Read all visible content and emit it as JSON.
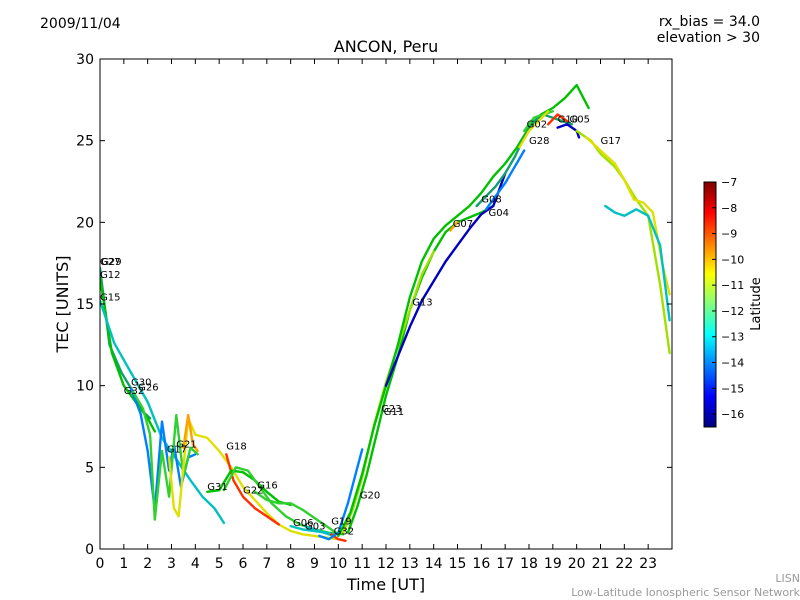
{
  "header": {
    "date": "2009/11/04",
    "bias_line1": "rx_bias = 34.0",
    "bias_line2": "elevation > 30"
  },
  "footer": {
    "line1": "LISN",
    "line2": "Low-Latitude Ionospheric Sensor Network"
  },
  "colors": {
    "jet": [
      "#00007f",
      "#0000ff",
      "#007fff",
      "#00ffff",
      "#7fff7f",
      "#ffff00",
      "#ff7f00",
      "#ff0000",
      "#7f0000"
    ],
    "satellite_scale": [
      "#0000c0",
      "#0080ff",
      "#00c0c0",
      "#10a070",
      "#00c000",
      "#30d030",
      "#a0e000",
      "#e0e000",
      "#ffa000",
      "#ff3000",
      "#d00000"
    ]
  },
  "chart_data": {
    "type": "line",
    "title": "ANCON, Peru",
    "xlabel": "Time [UT]",
    "ylabel": "TEC [UNITS]",
    "xlim": [
      0,
      24
    ],
    "ylim": [
      0,
      30
    ],
    "xticks": [
      0,
      1,
      2,
      3,
      4,
      5,
      6,
      7,
      8,
      9,
      10,
      11,
      12,
      13,
      14,
      15,
      16,
      17,
      18,
      19,
      20,
      21,
      22,
      23
    ],
    "yticks": [
      0,
      5,
      10,
      15,
      20,
      25,
      30
    ],
    "colorbar": {
      "label": "Latitude",
      "range": [
        -16.5,
        -7
      ],
      "ticks": [
        -7,
        -8,
        -9,
        -10,
        -11,
        -12,
        -13,
        -14,
        -15,
        -16
      ]
    },
    "series": [
      {
        "name": "G27",
        "lat": -13.8,
        "x": [
          0.0,
          0.4,
          0.9,
          1.4,
          1.8,
          2.1
        ],
        "y": [
          17.2,
          12.5,
          10.8,
          9.6,
          8.4,
          8.0
        ]
      },
      {
        "name": "G12",
        "lat": -12.5,
        "x": [
          0.0,
          0.5,
          1.0,
          1.6,
          2.0,
          2.3
        ],
        "y": [
          16.6,
          12.0,
          10.0,
          8.8,
          8.0,
          7.2
        ]
      },
      {
        "name": "G15",
        "lat": -14.8,
        "x": [
          0.0,
          0.6,
          1.3,
          2.0,
          2.6,
          3.2,
          3.8,
          4.3,
          4.8,
          5.2
        ],
        "y": [
          15.2,
          12.6,
          10.8,
          9.0,
          6.8,
          5.5,
          4.2,
          3.2,
          2.5,
          1.6
        ]
      },
      {
        "name": "G30",
        "lat": -15.6,
        "x": [
          1.3,
          1.7,
          2.0,
          2.3,
          2.6,
          2.9,
          3.1,
          3.4,
          3.7,
          4.0
        ],
        "y": [
          9.8,
          8.3,
          6.0,
          2.4,
          7.8,
          4.8,
          6.4,
          3.8,
          5.6,
          5.8
        ]
      },
      {
        "name": "G26",
        "lat": -12.0,
        "x": [
          1.4,
          1.8,
          2.1,
          2.3,
          2.6,
          2.9,
          3.2,
          3.5,
          3.8,
          4.1
        ],
        "y": [
          9.6,
          8.6,
          7.0,
          1.8,
          6.0,
          3.2,
          8.2,
          4.5,
          6.2,
          5.8
        ]
      },
      {
        "name": "G17",
        "lat": -10.2,
        "x": [
          2.9,
          3.1,
          3.3,
          3.5,
          3.7,
          4.0,
          4.5,
          5.0,
          5.5,
          6.0,
          6.5,
          7.0,
          7.5,
          8.0,
          8.5,
          9.0,
          9.5,
          10.0
        ],
        "y": [
          5.6,
          2.5,
          2.0,
          5.0,
          8.0,
          7.0,
          6.8,
          6.0,
          5.0,
          3.8,
          3.0,
          2.2,
          1.5,
          1.1,
          0.9,
          0.8,
          0.7,
          0.6
        ]
      },
      {
        "name": "G21",
        "lat": -9.0,
        "x": [
          3.5,
          3.7,
          3.9,
          4.1
        ],
        "y": [
          6.2,
          8.2,
          6.4,
          6.0
        ]
      },
      {
        "name": "G18",
        "lat": -8.2,
        "x": [
          5.3,
          5.6,
          6.0,
          6.5,
          7.0,
          7.5
        ],
        "y": [
          5.8,
          4.2,
          3.2,
          2.5,
          2.0,
          1.5
        ]
      },
      {
        "name": "G31",
        "lat": -12.8,
        "x": [
          4.5,
          5.0,
          5.5,
          6.0,
          6.5,
          7.0,
          7.5,
          8.0
        ],
        "y": [
          3.5,
          3.6,
          4.8,
          4.7,
          4.2,
          3.5,
          2.9,
          2.7
        ]
      },
      {
        "name": "G22",
        "lat": -11.3,
        "x": [
          5.2,
          5.7,
          6.2,
          6.7,
          7.2,
          7.8,
          8.4,
          9.0,
          9.6,
          10.2
        ],
        "y": [
          3.6,
          5.0,
          4.8,
          3.8,
          2.8,
          2.0,
          1.5,
          1.2,
          1.0,
          0.9
        ]
      },
      {
        "name": "G16",
        "lat": -12.2,
        "x": [
          6.5,
          7.0,
          7.5,
          8.0,
          8.5,
          9.0,
          9.5,
          10.0
        ],
        "y": [
          3.5,
          3.0,
          2.8,
          2.8,
          2.4,
          1.9,
          1.4,
          0.9
        ]
      },
      {
        "name": "G06",
        "lat": -14.2,
        "x": [
          8.0,
          8.5,
          9.0,
          9.5,
          9.8
        ],
        "y": [
          1.4,
          1.2,
          1.1,
          1.0,
          0.9
        ]
      },
      {
        "name": "G03",
        "lat": -15.0,
        "x": [
          8.6,
          9.0,
          9.4,
          9.8
        ],
        "y": [
          1.4,
          1.2,
          1.0,
          0.8
        ]
      },
      {
        "name": "G32",
        "lat": -7.8,
        "x": [
          9.7,
          10.0,
          10.3
        ],
        "y": [
          0.9,
          0.6,
          0.5
        ]
      },
      {
        "name": "G19",
        "lat": -15.4,
        "x": [
          9.2,
          9.6,
          10.0,
          10.4,
          10.8,
          11.0
        ],
        "y": [
          0.8,
          0.6,
          1.0,
          2.8,
          5.0,
          6.1
        ]
      },
      {
        "name": "G20",
        "lat": -12.3,
        "x": [
          10.4,
          10.8,
          11.2,
          11.6,
          12.0,
          12.5,
          13.0,
          13.5,
          14.0,
          14.5,
          15.0,
          15.5,
          16.0,
          16.5
        ],
        "y": [
          1.0,
          2.6,
          4.6,
          7.0,
          9.4,
          11.8,
          14.6,
          16.6,
          18.2,
          19.4,
          20.0,
          20.3,
          20.6,
          21.0
        ]
      },
      {
        "name": "G23",
        "lat": -10.8,
        "x": [
          10.2,
          10.6,
          11.0,
          11.5,
          12.0,
          12.5,
          13.0,
          13.5,
          14.0
        ],
        "y": [
          1.0,
          2.4,
          4.4,
          7.6,
          10.2,
          12.4,
          14.6,
          16.8,
          18.2
        ]
      },
      {
        "name": "G11",
        "lat": -12.9,
        "x": [
          10.0,
          10.5,
          11.0,
          11.5,
          12.0,
          12.5,
          13.0,
          13.5,
          14.0,
          14.5,
          15.0,
          15.5,
          16.0,
          16.5,
          17.0,
          17.5,
          18.0,
          18.5,
          19.0,
          19.5,
          20.0,
          20.5
        ],
        "y": [
          0.8,
          2.2,
          4.6,
          7.5,
          10.0,
          12.5,
          15.4,
          17.6,
          19.0,
          19.8,
          20.4,
          21.0,
          21.8,
          22.8,
          23.6,
          24.6,
          25.8,
          26.6,
          27.0,
          27.6,
          28.4,
          27.0
        ]
      },
      {
        "name": "G13",
        "lat": -16.3,
        "x": [
          12.0,
          12.5,
          13.0,
          13.5,
          14.0,
          14.5,
          15.0,
          15.5,
          16.0,
          16.5,
          17.0
        ],
        "y": [
          10.0,
          11.8,
          13.6,
          15.2,
          16.4,
          17.6,
          18.6,
          19.6,
          20.5,
          21.0,
          23.0
        ]
      },
      {
        "name": "G07",
        "lat": -8.6,
        "x": [
          14.7,
          15.0
        ],
        "y": [
          19.5,
          20.0
        ]
      },
      {
        "name": "G08",
        "lat": -13.4,
        "x": [
          15.8,
          16.2,
          16.6,
          17.0,
          17.4,
          17.8,
          18.2,
          18.6,
          19.0,
          19.4,
          19.8
        ],
        "y": [
          21.0,
          21.6,
          22.2,
          23.0,
          24.0,
          25.2,
          26.2,
          26.6,
          26.4,
          26.2,
          26.0
        ]
      },
      {
        "name": "G04",
        "lat": -15.8,
        "x": [
          16.2,
          16.6,
          17.0,
          17.4,
          17.8
        ],
        "y": [
          20.8,
          21.6,
          22.4,
          23.4,
          24.4
        ]
      },
      {
        "name": "G02",
        "lat": -11.7,
        "x": [
          17.8,
          18.2,
          18.6,
          19.0
        ],
        "y": [
          25.6,
          26.4,
          26.6,
          26.8
        ]
      },
      {
        "name": "G28",
        "lat": -9.5,
        "x": [
          17.6,
          18.0,
          18.4,
          18.8
        ],
        "y": [
          24.6,
          25.6,
          26.2,
          26.8
        ]
      },
      {
        "name": "G10",
        "lat": -7.6,
        "x": [
          18.8,
          19.2,
          19.6
        ],
        "y": [
          26.0,
          26.6,
          26.2
        ]
      },
      {
        "name": "G05",
        "lat": -16.1,
        "x": [
          19.2,
          19.6,
          20.0,
          20.1
        ],
        "y": [
          25.8,
          26.0,
          25.6,
          25.2
        ]
      },
      {
        "name": "G17",
        "lat": -11.0,
        "x": [
          20.0,
          20.6,
          21.0,
          21.6,
          22.0,
          22.5,
          23.0,
          23.5,
          23.9
        ],
        "y": [
          25.6,
          25.0,
          24.2,
          23.4,
          22.6,
          21.4,
          20.4,
          16.2,
          12.0
        ]
      },
      {
        "name": "G29",
        "lat": -10.0,
        "x": [
          20.4,
          21.0,
          21.6,
          22.0,
          22.4,
          22.8,
          23.2,
          23.6,
          23.9
        ],
        "y": [
          25.2,
          24.4,
          23.6,
          22.6,
          21.4,
          21.2,
          20.6,
          17.4,
          15.6
        ]
      },
      {
        "name": "G25",
        "lat": -14.6,
        "x": [
          21.2,
          21.6,
          22.0,
          22.5,
          23.0,
          23.5,
          23.9
        ],
        "y": [
          21.0,
          20.6,
          20.4,
          20.8,
          20.4,
          18.6,
          14.0
        ]
      }
    ],
    "labels": [
      {
        "text": "G27",
        "x": 0.0,
        "y": 17.4
      },
      {
        "text": "G29",
        "x": 0.05,
        "y": 17.4
      },
      {
        "text": "G12",
        "x": 0.0,
        "y": 16.6
      },
      {
        "text": "G15",
        "x": 0.0,
        "y": 15.2
      },
      {
        "text": "G30",
        "x": 1.3,
        "y": 10.0
      },
      {
        "text": "G32",
        "x": 1.0,
        "y": 9.5
      },
      {
        "text": "G26",
        "x": 1.6,
        "y": 9.7
      },
      {
        "text": "G21",
        "x": 3.2,
        "y": 6.2
      },
      {
        "text": "G17",
        "x": 2.8,
        "y": 5.9
      },
      {
        "text": "G18",
        "x": 5.3,
        "y": 6.1
      },
      {
        "text": "G31",
        "x": 4.5,
        "y": 3.6
      },
      {
        "text": "G22",
        "x": 6.0,
        "y": 3.4
      },
      {
        "text": "G16",
        "x": 6.6,
        "y": 3.7
      },
      {
        "text": "G06",
        "x": 8.1,
        "y": 1.4
      },
      {
        "text": "G03",
        "x": 8.6,
        "y": 1.2
      },
      {
        "text": "G19",
        "x": 9.7,
        "y": 1.5
      },
      {
        "text": "G32",
        "x": 9.8,
        "y": 0.9
      },
      {
        "text": "G20",
        "x": 10.9,
        "y": 3.1
      },
      {
        "text": "G23",
        "x": 11.8,
        "y": 8.4
      },
      {
        "text": "G11",
        "x": 11.9,
        "y": 8.2
      },
      {
        "text": "G13",
        "x": 13.1,
        "y": 14.9
      },
      {
        "text": "G07",
        "x": 14.8,
        "y": 19.7
      },
      {
        "text": "G08",
        "x": 16.0,
        "y": 21.2
      },
      {
        "text": "G04",
        "x": 16.3,
        "y": 20.4
      },
      {
        "text": "G02",
        "x": 17.9,
        "y": 25.8
      },
      {
        "text": "G28",
        "x": 18.0,
        "y": 24.8
      },
      {
        "text": "G10",
        "x": 19.2,
        "y": 26.1
      },
      {
        "text": "G05",
        "x": 19.7,
        "y": 26.1
      },
      {
        "text": "G17",
        "x": 21.0,
        "y": 24.8
      }
    ]
  }
}
